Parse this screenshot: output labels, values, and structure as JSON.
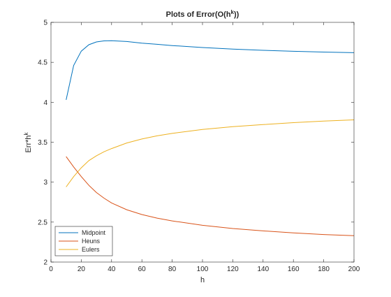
{
  "chart_data": {
    "type": "line",
    "title": {
      "main": "Plots of Error(O(h",
      "sup": "k",
      "end": "))"
    },
    "xlabel": "h",
    "ylabel": {
      "main": "Err*h",
      "sup": "k"
    },
    "xlim": [
      0,
      200
    ],
    "ylim": [
      2,
      5
    ],
    "xticks": [
      0,
      20,
      40,
      60,
      80,
      100,
      120,
      140,
      160,
      180,
      200
    ],
    "yticks": [
      2,
      2.5,
      3,
      3.5,
      4,
      4.5,
      5
    ],
    "xtick_labels": [
      "0",
      "20",
      "40",
      "60",
      "80",
      "100",
      "120",
      "140",
      "160",
      "180",
      "200"
    ],
    "ytick_labels": [
      "2",
      "2.5",
      "3",
      "3.5",
      "4",
      "4.5",
      "5"
    ],
    "grid": false,
    "box": true,
    "legend_position": "bottom-left",
    "x": [
      10,
      15,
      20,
      25,
      30,
      35,
      40,
      50,
      60,
      70,
      80,
      100,
      120,
      140,
      160,
      180,
      200
    ],
    "series": [
      {
        "name": "Midpoint",
        "color": "#0072BD",
        "values": [
          4.03,
          4.46,
          4.64,
          4.72,
          4.755,
          4.768,
          4.77,
          4.76,
          4.74,
          4.725,
          4.71,
          4.685,
          4.665,
          4.65,
          4.638,
          4.628,
          4.62
        ]
      },
      {
        "name": "Heuns",
        "color": "#D95319",
        "values": [
          3.32,
          3.19,
          3.07,
          2.96,
          2.87,
          2.8,
          2.74,
          2.655,
          2.595,
          2.55,
          2.515,
          2.46,
          2.42,
          2.39,
          2.365,
          2.345,
          2.33
        ]
      },
      {
        "name": "Eulers",
        "color": "#EDB120",
        "values": [
          2.94,
          3.07,
          3.18,
          3.27,
          3.33,
          3.38,
          3.42,
          3.49,
          3.54,
          3.58,
          3.61,
          3.66,
          3.695,
          3.72,
          3.745,
          3.765,
          3.78
        ]
      }
    ]
  }
}
